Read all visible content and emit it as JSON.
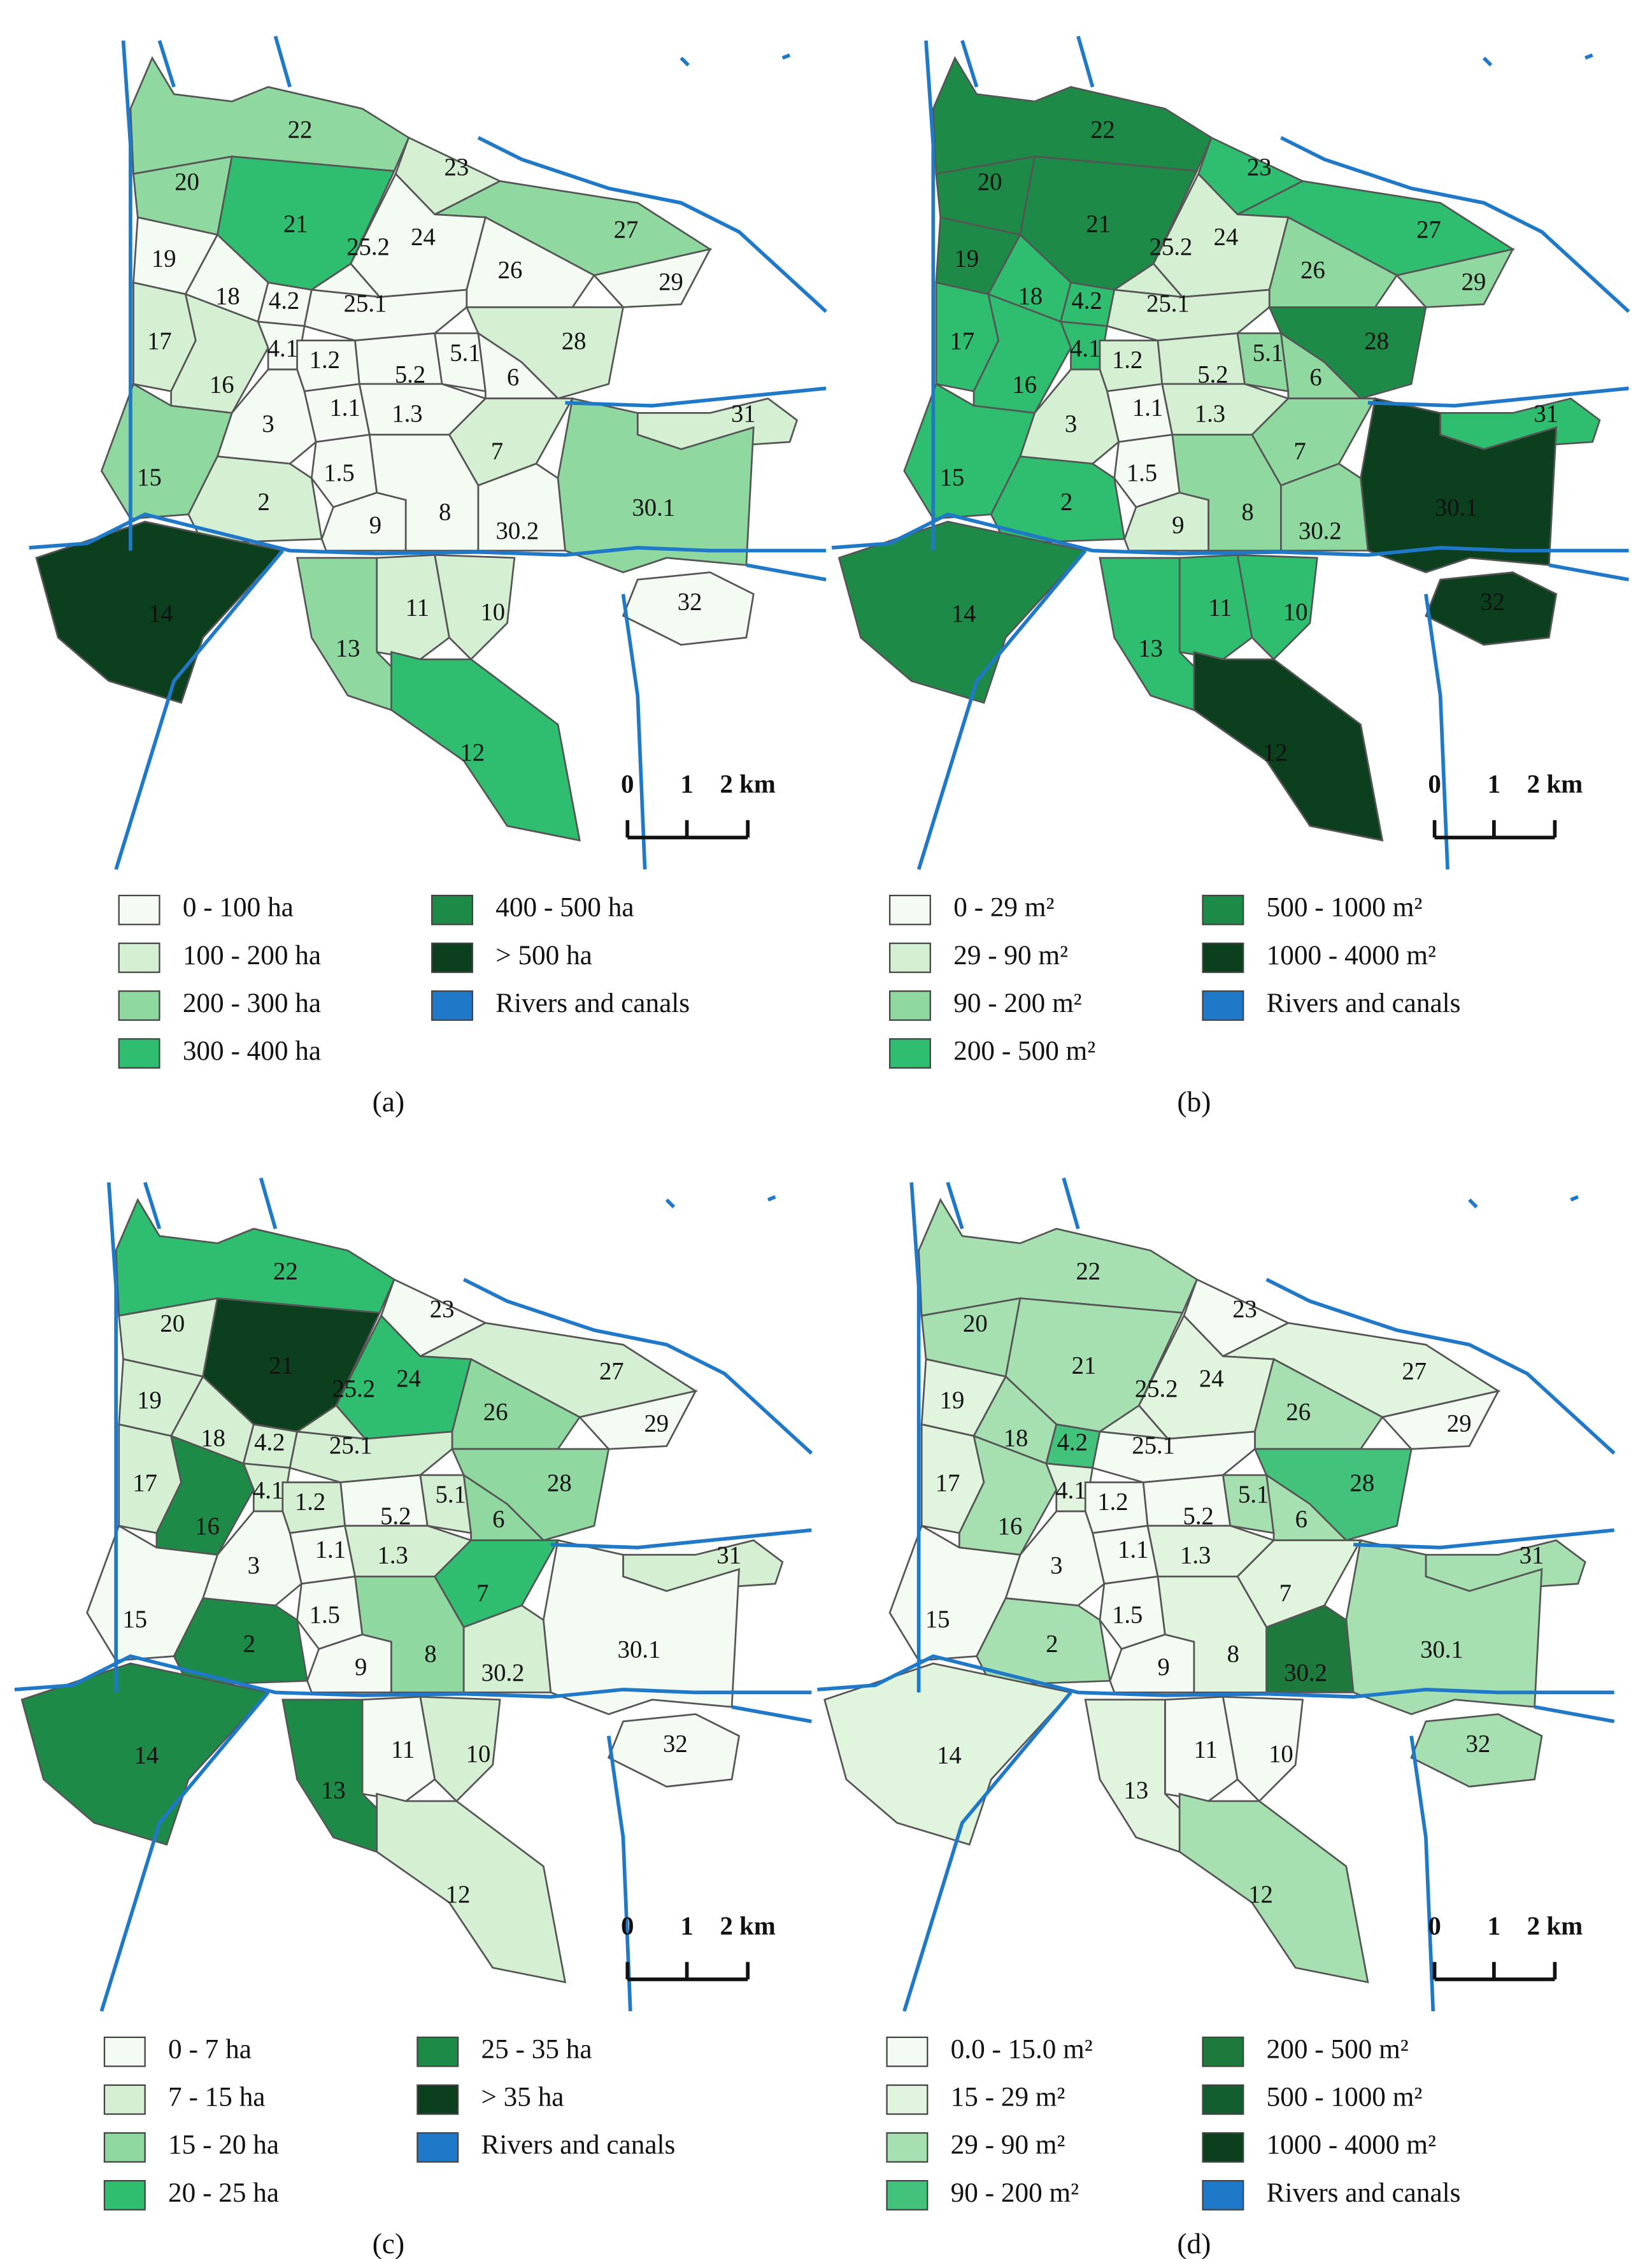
{
  "panels": [
    {
      "zones": [
        {
          "label": "22",
          "color": "#8fd8a0"
        },
        {
          "label": "20",
          "color": "#8fd8a0"
        },
        {
          "label": "21",
          "color": "#2fbd6f"
        },
        {
          "label": "23",
          "color": "#d5efd3"
        },
        {
          "label": "27",
          "color": "#8fd8a0"
        },
        {
          "label": "24",
          "color": "#f4fbf3"
        },
        {
          "label": "25.2",
          "color": "#f4fbf3"
        },
        {
          "label": "26",
          "color": "#f4fbf3"
        },
        {
          "label": "29",
          "color": "#f4fbf3"
        },
        {
          "label": "19",
          "color": "#f4fbf3"
        },
        {
          "label": "18",
          "color": "#f4fbf3"
        },
        {
          "label": "4.2",
          "color": "#f4fbf3"
        },
        {
          "label": "25.1",
          "color": "#f4fbf3"
        },
        {
          "label": "28",
          "color": "#d5efd3"
        },
        {
          "label": "17",
          "color": "#d5efd3"
        },
        {
          "label": "16",
          "color": "#d5efd3"
        },
        {
          "label": "4.1",
          "color": "#f4fbf3"
        },
        {
          "label": "1.2",
          "color": "#f4fbf3"
        },
        {
          "label": "5.2",
          "color": "#f4fbf3"
        },
        {
          "label": "5.1",
          "color": "#f4fbf3"
        },
        {
          "label": "6",
          "color": "#f4fbf3"
        },
        {
          "label": "1.1",
          "color": "#f4fbf3"
        },
        {
          "label": "1.3",
          "color": "#f4fbf3"
        },
        {
          "label": "3",
          "color": "#f4fbf3"
        },
        {
          "label": "7",
          "color": "#d5efd3"
        },
        {
          "label": "31",
          "color": "#d5efd3"
        },
        {
          "label": "15",
          "color": "#8fd8a0"
        },
        {
          "label": "1.5",
          "color": "#f4fbf3"
        },
        {
          "label": "2",
          "color": "#d5efd3"
        },
        {
          "label": "30.1",
          "color": "#8fd8a0"
        },
        {
          "label": "9",
          "color": "#f4fbf3"
        },
        {
          "label": "8",
          "color": "#f4fbf3"
        },
        {
          "label": "30.2",
          "color": "#f4fbf3"
        },
        {
          "label": "14",
          "color": "#0b3f1d"
        },
        {
          "label": "11",
          "color": "#d5efd3"
        },
        {
          "label": "10",
          "color": "#d5efd3"
        },
        {
          "label": "32",
          "color": "#f4fbf3"
        },
        {
          "label": "13",
          "color": "#8fd8a0"
        },
        {
          "label": "12",
          "color": "#2fbd6f"
        }
      ],
      "legend": [
        {
          "label": "0 - 100 ha",
          "color": "#f4fbf3"
        },
        {
          "label": "100 - 200 ha",
          "color": "#d5efd3"
        },
        {
          "label": "200 - 300 ha",
          "color": "#8fd8a0"
        },
        {
          "label": "300 - 400 ha",
          "color": "#2fbd6f"
        },
        {
          "label": "400 - 500 ha",
          "color": "#1e8a47"
        },
        {
          "label": "> 500 ha",
          "color": "#0b3f1d"
        },
        {
          "label": "Rivers and canals",
          "color": "#1f78c8"
        }
      ],
      "scale": [
        "0",
        "1",
        "2 km"
      ],
      "caption": "(a)"
    },
    {
      "zones": [
        {
          "label": "22",
          "color": "#1e8a47"
        },
        {
          "label": "20",
          "color": "#1e8a47"
        },
        {
          "label": "21",
          "color": "#1e8a47"
        },
        {
          "label": "23",
          "color": "#2fbd6f"
        },
        {
          "label": "27",
          "color": "#2fbd6f"
        },
        {
          "label": "24",
          "color": "#d5efd3"
        },
        {
          "label": "25.2",
          "color": "#d5efd3"
        },
        {
          "label": "26",
          "color": "#8fd8a0"
        },
        {
          "label": "29",
          "color": "#8fd8a0"
        },
        {
          "label": "19",
          "color": "#1e8a47"
        },
        {
          "label": "18",
          "color": "#2fbd6f"
        },
        {
          "label": "4.2",
          "color": "#2fbd6f"
        },
        {
          "label": "25.1",
          "color": "#d5efd3"
        },
        {
          "label": "28",
          "color": "#1e8a47"
        },
        {
          "label": "17",
          "color": "#2fbd6f"
        },
        {
          "label": "16",
          "color": "#2fbd6f"
        },
        {
          "label": "4.1",
          "color": "#2fbd6f"
        },
        {
          "label": "1.2",
          "color": "#d5efd3"
        },
        {
          "label": "5.2",
          "color": "#d5efd3"
        },
        {
          "label": "5.1",
          "color": "#8fd8a0"
        },
        {
          "label": "6",
          "color": "#8fd8a0"
        },
        {
          "label": "1.1",
          "color": "#f4fbf3"
        },
        {
          "label": "1.3",
          "color": "#d5efd3"
        },
        {
          "label": "3",
          "color": "#d5efd3"
        },
        {
          "label": "7",
          "color": "#8fd8a0"
        },
        {
          "label": "31",
          "color": "#2fbd6f"
        },
        {
          "label": "15",
          "color": "#2fbd6f"
        },
        {
          "label": "1.5",
          "color": "#f4fbf3"
        },
        {
          "label": "2",
          "color": "#2fbd6f"
        },
        {
          "label": "30.1",
          "color": "#0b3f1d"
        },
        {
          "label": "9",
          "color": "#d5efd3"
        },
        {
          "label": "8",
          "color": "#8fd8a0"
        },
        {
          "label": "30.2",
          "color": "#8fd8a0"
        },
        {
          "label": "14",
          "color": "#1e8a47"
        },
        {
          "label": "11",
          "color": "#2fbd6f"
        },
        {
          "label": "10",
          "color": "#2fbd6f"
        },
        {
          "label": "32",
          "color": "#0b3f1d"
        },
        {
          "label": "13",
          "color": "#2fbd6f"
        },
        {
          "label": "12",
          "color": "#0b3f1d"
        }
      ],
      "legend": [
        {
          "label": "0 - 29 m²",
          "color": "#f4fbf3"
        },
        {
          "label": "29 - 90 m²",
          "color": "#d5efd3"
        },
        {
          "label": "90 - 200 m²",
          "color": "#8fd8a0"
        },
        {
          "label": "200 - 500 m²",
          "color": "#2fbd6f"
        },
        {
          "label": "500 - 1000 m²",
          "color": "#1e8a47"
        },
        {
          "label": "1000 - 4000 m²",
          "color": "#0b3f1d"
        },
        {
          "label": "Rivers and canals",
          "color": "#1f78c8"
        }
      ],
      "scale": [
        "0",
        "1",
        "2 km"
      ],
      "caption": "(b)"
    },
    {
      "zones": [
        {
          "label": "22",
          "color": "#2fbd6f"
        },
        {
          "label": "20",
          "color": "#d5efd3"
        },
        {
          "label": "21",
          "color": "#0b3f1d"
        },
        {
          "label": "23",
          "color": "#f4fbf3"
        },
        {
          "label": "27",
          "color": "#d5efd3"
        },
        {
          "label": "24",
          "color": "#2fbd6f"
        },
        {
          "label": "25.2",
          "color": "#d5efd3"
        },
        {
          "label": "26",
          "color": "#8fd8a0"
        },
        {
          "label": "29",
          "color": "#f4fbf3"
        },
        {
          "label": "19",
          "color": "#d5efd3"
        },
        {
          "label": "18",
          "color": "#d5efd3"
        },
        {
          "label": "4.2",
          "color": "#d5efd3"
        },
        {
          "label": "25.1",
          "color": "#d5efd3"
        },
        {
          "label": "28",
          "color": "#8fd8a0"
        },
        {
          "label": "17",
          "color": "#d5efd3"
        },
        {
          "label": "16",
          "color": "#1e8a47"
        },
        {
          "label": "4.1",
          "color": "#d5efd3"
        },
        {
          "label": "1.2",
          "color": "#d5efd3"
        },
        {
          "label": "5.2",
          "color": "#f4fbf3"
        },
        {
          "label": "5.1",
          "color": "#d5efd3"
        },
        {
          "label": "6",
          "color": "#8fd8a0"
        },
        {
          "label": "1.1",
          "color": "#f4fbf3"
        },
        {
          "label": "1.3",
          "color": "#d5efd3"
        },
        {
          "label": "3",
          "color": "#f4fbf3"
        },
        {
          "label": "7",
          "color": "#2fbd6f"
        },
        {
          "label": "31",
          "color": "#d5efd3"
        },
        {
          "label": "15",
          "color": "#f4fbf3"
        },
        {
          "label": "1.5",
          "color": "#f4fbf3"
        },
        {
          "label": "2",
          "color": "#1e8a47"
        },
        {
          "label": "30.1",
          "color": "#f4fbf3"
        },
        {
          "label": "9",
          "color": "#f4fbf3"
        },
        {
          "label": "8",
          "color": "#8fd8a0"
        },
        {
          "label": "30.2",
          "color": "#d5efd3"
        },
        {
          "label": "14",
          "color": "#1e8a47"
        },
        {
          "label": "11",
          "color": "#f4fbf3"
        },
        {
          "label": "10",
          "color": "#d5efd3"
        },
        {
          "label": "32",
          "color": "#f4fbf3"
        },
        {
          "label": "13",
          "color": "#1e8a47"
        },
        {
          "label": "12",
          "color": "#d5efd3"
        }
      ],
      "legend": [
        {
          "label": "0 - 7 ha",
          "color": "#f4fbf3"
        },
        {
          "label": "7 - 15 ha",
          "color": "#d5efd3"
        },
        {
          "label": "15 - 20 ha",
          "color": "#8fd8a0"
        },
        {
          "label": "20 - 25 ha",
          "color": "#2fbd6f"
        },
        {
          "label": "25 - 35 ha",
          "color": "#1e8a47"
        },
        {
          "label": "> 35 ha",
          "color": "#0b3f1d"
        },
        {
          "label": "Rivers and canals",
          "color": "#1f78c8"
        }
      ],
      "scale": [
        "0",
        "1",
        "2 km"
      ],
      "caption": "(c)"
    },
    {
      "zones": [
        {
          "label": "22",
          "color": "#a6e0b0"
        },
        {
          "label": "20",
          "color": "#a6e0b0"
        },
        {
          "label": "21",
          "color": "#a6e0b0"
        },
        {
          "label": "23",
          "color": "#f4fbf3"
        },
        {
          "label": "27",
          "color": "#e1f4de"
        },
        {
          "label": "24",
          "color": "#e1f4de"
        },
        {
          "label": "25.2",
          "color": "#e1f4de"
        },
        {
          "label": "26",
          "color": "#a6e0b0"
        },
        {
          "label": "29",
          "color": "#f4fbf3"
        },
        {
          "label": "19",
          "color": "#e1f4de"
        },
        {
          "label": "18",
          "color": "#a6e0b0"
        },
        {
          "label": "4.2",
          "color": "#43c27b"
        },
        {
          "label": "25.1",
          "color": "#f4fbf3"
        },
        {
          "label": "28",
          "color": "#43c27b"
        },
        {
          "label": "17",
          "color": "#e1f4de"
        },
        {
          "label": "16",
          "color": "#a6e0b0"
        },
        {
          "label": "4.1",
          "color": "#e1f4de"
        },
        {
          "label": "1.2",
          "color": "#f4fbf3"
        },
        {
          "label": "5.2",
          "color": "#f4fbf3"
        },
        {
          "label": "5.1",
          "color": "#a6e0b0"
        },
        {
          "label": "6",
          "color": "#a6e0b0"
        },
        {
          "label": "1.1",
          "color": "#f4fbf3"
        },
        {
          "label": "1.3",
          "color": "#e1f4de"
        },
        {
          "label": "3",
          "color": "#f4fbf3"
        },
        {
          "label": "7",
          "color": "#e1f4de"
        },
        {
          "label": "31",
          "color": "#a6e0b0"
        },
        {
          "label": "15",
          "color": "#f4fbf3"
        },
        {
          "label": "1.5",
          "color": "#f4fbf3"
        },
        {
          "label": "2",
          "color": "#a6e0b0"
        },
        {
          "label": "30.1",
          "color": "#a6e0b0"
        },
        {
          "label": "9",
          "color": "#f4fbf3"
        },
        {
          "label": "8",
          "color": "#e1f4de"
        },
        {
          "label": "30.2",
          "color": "#1e7a3c"
        },
        {
          "label": "14",
          "color": "#e1f4de"
        },
        {
          "label": "11",
          "color": "#f4fbf3"
        },
        {
          "label": "10",
          "color": "#f4fbf3"
        },
        {
          "label": "32",
          "color": "#a6e0b0"
        },
        {
          "label": "13",
          "color": "#e1f4de"
        },
        {
          "label": "12",
          "color": "#a6e0b0"
        }
      ],
      "legend": [
        {
          "label": "0.0 - 15.0 m²",
          "color": "#f4fbf3"
        },
        {
          "label": "15 - 29 m²",
          "color": "#e1f4de"
        },
        {
          "label": "29 - 90 m²",
          "color": "#a6e0b0"
        },
        {
          "label": "90 - 200 m²",
          "color": "#43c27b"
        },
        {
          "label": "200 - 500 m²",
          "color": "#1e7a3c"
        },
        {
          "label": "500 - 1000 m²",
          "color": "#125e2f"
        },
        {
          "label": "1000 - 4000 m²",
          "color": "#0b3f1d"
        },
        {
          "label": "Rivers and canals",
          "color": "#1f78c8"
        }
      ],
      "scale": [
        "0",
        "1",
        "2 km"
      ],
      "caption": "(d)"
    }
  ]
}
